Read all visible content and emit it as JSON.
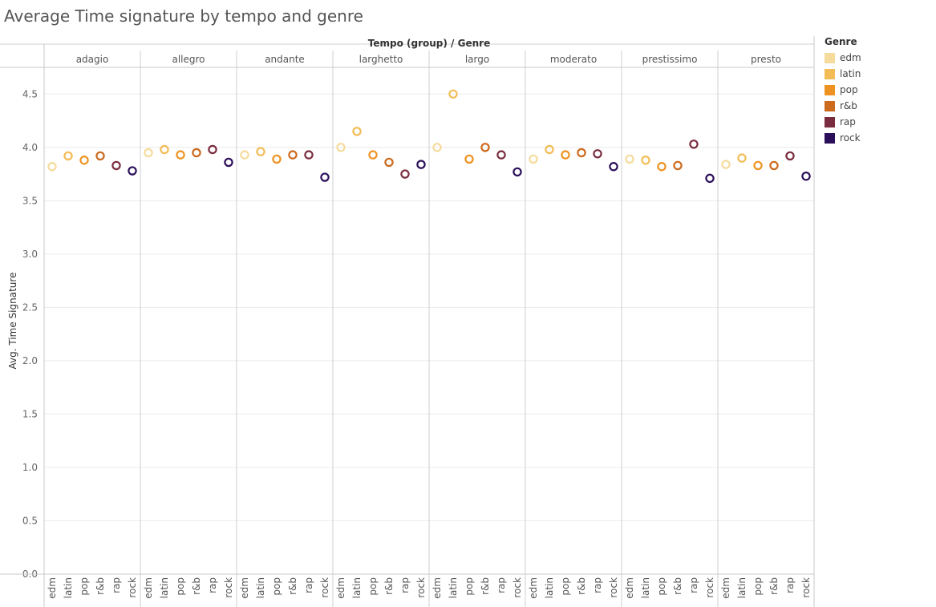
{
  "chart_data": {
    "type": "scatter",
    "title": "Average Time signature by tempo and genre",
    "column_header": "Tempo (group)  /  Genre",
    "ylabel": "Avg. Time Signature",
    "ylim": [
      0,
      4.75
    ],
    "yticks": [
      0.0,
      0.5,
      1.0,
      1.5,
      2.0,
      2.5,
      3.0,
      3.5,
      4.0,
      4.5
    ],
    "ytick_labels": [
      "0.0",
      "0.5",
      "1.0",
      "1.5",
      "2.0",
      "2.5",
      "3.0",
      "3.5",
      "4.0",
      "4.5"
    ],
    "groups": [
      "adagio",
      "allegro",
      "andante",
      "larghetto",
      "largo",
      "moderato",
      "prestissimo",
      "presto"
    ],
    "genres": [
      "edm",
      "latin",
      "pop",
      "r&b",
      "rap",
      "rock"
    ],
    "legend": {
      "title": "Genre",
      "position": "right",
      "items": [
        {
          "label": "edm",
          "color": "#f5dc9c"
        },
        {
          "label": "latin",
          "color": "#f3bc57"
        },
        {
          "label": "pop",
          "color": "#ee9322"
        },
        {
          "label": "r&b",
          "color": "#cc6a1e"
        },
        {
          "label": "rap",
          "color": "#7a2c3e"
        },
        {
          "label": "rock",
          "color": "#2b0f5a"
        }
      ]
    },
    "values": {
      "adagio": [
        3.82,
        3.92,
        3.88,
        3.92,
        3.83,
        3.78
      ],
      "allegro": [
        3.95,
        3.98,
        3.93,
        3.95,
        3.98,
        3.86
      ],
      "andante": [
        3.93,
        3.96,
        3.89,
        3.93,
        3.93,
        3.72
      ],
      "larghetto": [
        4.0,
        4.15,
        3.93,
        3.86,
        3.75,
        3.84
      ],
      "largo": [
        4.0,
        4.5,
        3.89,
        4.0,
        3.93,
        3.77
      ],
      "moderato": [
        3.89,
        3.98,
        3.93,
        3.95,
        3.94,
        3.82
      ],
      "prestissimo": [
        3.89,
        3.88,
        3.82,
        3.83,
        4.03,
        3.71
      ],
      "presto": [
        3.84,
        3.9,
        3.83,
        3.83,
        3.92,
        3.73
      ]
    },
    "grid": true
  }
}
